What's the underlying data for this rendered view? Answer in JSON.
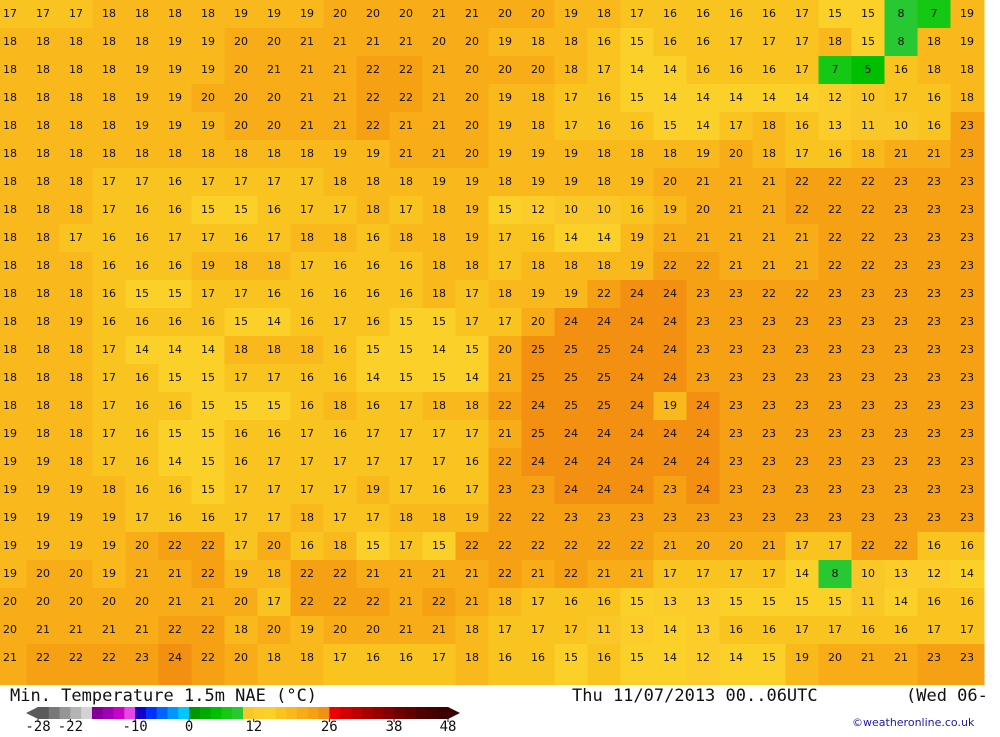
{
  "map": {
    "grid": [
      [
        17,
        17,
        17,
        18,
        18,
        18,
        18,
        19,
        19,
        19,
        20,
        20,
        20,
        21,
        21,
        20,
        20,
        19,
        18,
        17,
        16,
        16,
        16,
        16,
        17,
        15,
        15,
        8,
        7,
        19
      ],
      [
        18,
        18,
        18,
        18,
        18,
        19,
        19,
        20,
        20,
        21,
        21,
        21,
        21,
        20,
        20,
        19,
        18,
        18,
        16,
        15,
        16,
        16,
        17,
        17,
        17,
        18,
        15,
        8,
        18,
        19
      ],
      [
        18,
        18,
        18,
        18,
        19,
        19,
        19,
        20,
        21,
        21,
        21,
        22,
        22,
        21,
        20,
        20,
        20,
        18,
        17,
        14,
        14,
        16,
        16,
        16,
        17,
        7,
        5,
        16,
        18,
        18
      ],
      [
        18,
        18,
        18,
        18,
        19,
        19,
        20,
        20,
        20,
        21,
        21,
        22,
        22,
        21,
        20,
        19,
        18,
        17,
        16,
        15,
        14,
        14,
        14,
        14,
        14,
        12,
        10,
        17,
        16,
        18
      ],
      [
        18,
        18,
        18,
        18,
        19,
        19,
        19,
        20,
        20,
        21,
        21,
        22,
        21,
        21,
        20,
        19,
        18,
        17,
        16,
        16,
        15,
        14,
        17,
        18,
        16,
        13,
        11,
        10,
        16,
        23
      ],
      [
        18,
        18,
        18,
        18,
        18,
        18,
        18,
        18,
        18,
        18,
        19,
        19,
        21,
        21,
        20,
        19,
        19,
        19,
        18,
        18,
        18,
        19,
        20,
        18,
        17,
        16,
        18,
        21,
        21,
        23
      ],
      [
        18,
        18,
        18,
        17,
        17,
        16,
        17,
        17,
        17,
        17,
        18,
        18,
        18,
        19,
        19,
        18,
        19,
        19,
        18,
        19,
        20,
        21,
        21,
        21,
        22,
        22,
        22,
        23,
        23,
        23
      ],
      [
        18,
        18,
        18,
        17,
        16,
        16,
        15,
        15,
        16,
        17,
        17,
        18,
        17,
        18,
        19,
        15,
        12,
        10,
        10,
        16,
        19,
        20,
        21,
        21,
        22,
        22,
        22,
        23,
        23,
        23
      ],
      [
        18,
        18,
        17,
        16,
        16,
        17,
        17,
        16,
        17,
        18,
        18,
        16,
        18,
        18,
        19,
        17,
        16,
        14,
        14,
        19,
        21,
        21,
        21,
        21,
        21,
        22,
        22,
        23,
        23,
        23
      ],
      [
        18,
        18,
        18,
        16,
        16,
        16,
        19,
        18,
        18,
        17,
        16,
        16,
        16,
        18,
        18,
        17,
        18,
        18,
        18,
        19,
        22,
        22,
        21,
        21,
        21,
        22,
        22,
        23,
        23,
        23
      ],
      [
        18,
        18,
        18,
        16,
        15,
        15,
        17,
        17,
        16,
        16,
        16,
        16,
        16,
        18,
        17,
        18,
        19,
        19,
        22,
        24,
        24,
        23,
        23,
        22,
        22,
        23,
        23,
        23,
        23,
        23
      ],
      [
        18,
        18,
        19,
        16,
        16,
        16,
        16,
        15,
        14,
        16,
        17,
        16,
        15,
        15,
        17,
        17,
        20,
        24,
        24,
        24,
        24,
        23,
        23,
        23,
        23,
        23,
        23,
        23,
        23,
        23
      ],
      [
        18,
        18,
        18,
        17,
        14,
        14,
        14,
        18,
        18,
        18,
        16,
        15,
        15,
        14,
        15,
        20,
        25,
        25,
        25,
        24,
        24,
        23,
        23,
        23,
        23,
        23,
        23,
        23,
        23,
        23
      ],
      [
        18,
        18,
        18,
        17,
        16,
        15,
        15,
        17,
        17,
        16,
        16,
        14,
        15,
        15,
        14,
        21,
        25,
        25,
        25,
        24,
        24,
        23,
        23,
        23,
        23,
        23,
        23,
        23,
        23,
        23
      ],
      [
        18,
        18,
        18,
        17,
        16,
        16,
        15,
        15,
        15,
        16,
        18,
        16,
        17,
        18,
        18,
        22,
        24,
        25,
        25,
        24,
        19,
        24,
        23,
        23,
        23,
        23,
        23,
        23,
        23,
        23
      ],
      [
        19,
        18,
        18,
        17,
        16,
        15,
        15,
        16,
        16,
        17,
        16,
        17,
        17,
        17,
        17,
        21,
        25,
        24,
        24,
        24,
        24,
        24,
        23,
        23,
        23,
        23,
        23,
        23,
        23,
        23
      ],
      [
        19,
        19,
        18,
        17,
        16,
        14,
        15,
        16,
        17,
        17,
        17,
        17,
        17,
        17,
        16,
        22,
        24,
        24,
        24,
        24,
        24,
        24,
        23,
        23,
        23,
        23,
        23,
        23,
        23,
        23
      ],
      [
        19,
        19,
        19,
        18,
        16,
        16,
        15,
        17,
        17,
        17,
        17,
        19,
        17,
        16,
        17,
        23,
        23,
        24,
        24,
        24,
        23,
        24,
        23,
        23,
        23,
        23,
        23,
        23,
        23,
        23
      ],
      [
        19,
        19,
        19,
        19,
        17,
        16,
        16,
        17,
        17,
        18,
        17,
        17,
        18,
        18,
        19,
        22,
        22,
        23,
        23,
        23,
        23,
        23,
        23,
        23,
        23,
        23,
        23,
        23,
        23,
        23
      ],
      [
        19,
        19,
        19,
        19,
        20,
        22,
        22,
        17,
        20,
        16,
        18,
        15,
        17,
        15,
        22,
        22,
        22,
        22,
        22,
        22,
        21,
        20,
        20,
        21,
        17,
        17,
        22,
        22,
        16,
        16
      ],
      [
        19,
        20,
        20,
        19,
        21,
        21,
        22,
        19,
        18,
        22,
        22,
        21,
        21,
        21,
        21,
        22,
        21,
        22,
        21,
        21,
        17,
        17,
        17,
        17,
        14,
        8,
        10,
        13,
        12,
        14
      ],
      [
        20,
        20,
        20,
        20,
        20,
        21,
        21,
        20,
        17,
        22,
        22,
        22,
        21,
        22,
        21,
        18,
        17,
        16,
        16,
        15,
        13,
        13,
        15,
        15,
        15,
        15,
        11,
        14,
        16,
        16
      ],
      [
        20,
        21,
        21,
        21,
        21,
        22,
        22,
        18,
        20,
        19,
        20,
        20,
        21,
        21,
        18,
        17,
        17,
        17,
        11,
        13,
        14,
        13,
        16,
        16,
        17,
        17,
        16,
        16,
        17,
        17
      ],
      [
        21,
        22,
        22,
        22,
        23,
        24,
        22,
        20,
        18,
        18,
        17,
        16,
        16,
        17,
        18,
        16,
        16,
        15,
        16,
        15,
        14,
        12,
        14,
        15,
        19,
        20,
        21,
        21,
        23,
        23
      ]
    ]
  },
  "legend": {
    "title": "Min. Temperature 1.5m NAE (°C)",
    "time": "Thu 11/07/2013 00..06UTC",
    "run": "(Wed 06-",
    "credit": "©weatheronline.co.uk",
    "range": [
      -28,
      48
    ],
    "ticks": [
      -28,
      -22,
      -10,
      0,
      12,
      26,
      38,
      48
    ],
    "colors": [
      "#5a5a5a",
      "#787878",
      "#969696",
      "#b4b4b4",
      "#d2d2d2",
      "#820096",
      "#a000b4",
      "#c800c8",
      "#e646e6",
      "#1400c8",
      "#0032ff",
      "#0064ff",
      "#0096ff",
      "#00c8ff",
      "#009600",
      "#00aa00",
      "#00be00",
      "#14c814",
      "#28c832",
      "#f9c828",
      "#fbcc2a",
      "#fbd028",
      "#fac420",
      "#f9b81c",
      "#f8ac18",
      "#f6a014",
      "#f39012",
      "#ee0000",
      "#d20000",
      "#be0000",
      "#aa0000",
      "#960000",
      "#820000",
      "#700000",
      "#600000",
      "#500000",
      "#460000",
      "#3c0000"
    ]
  }
}
